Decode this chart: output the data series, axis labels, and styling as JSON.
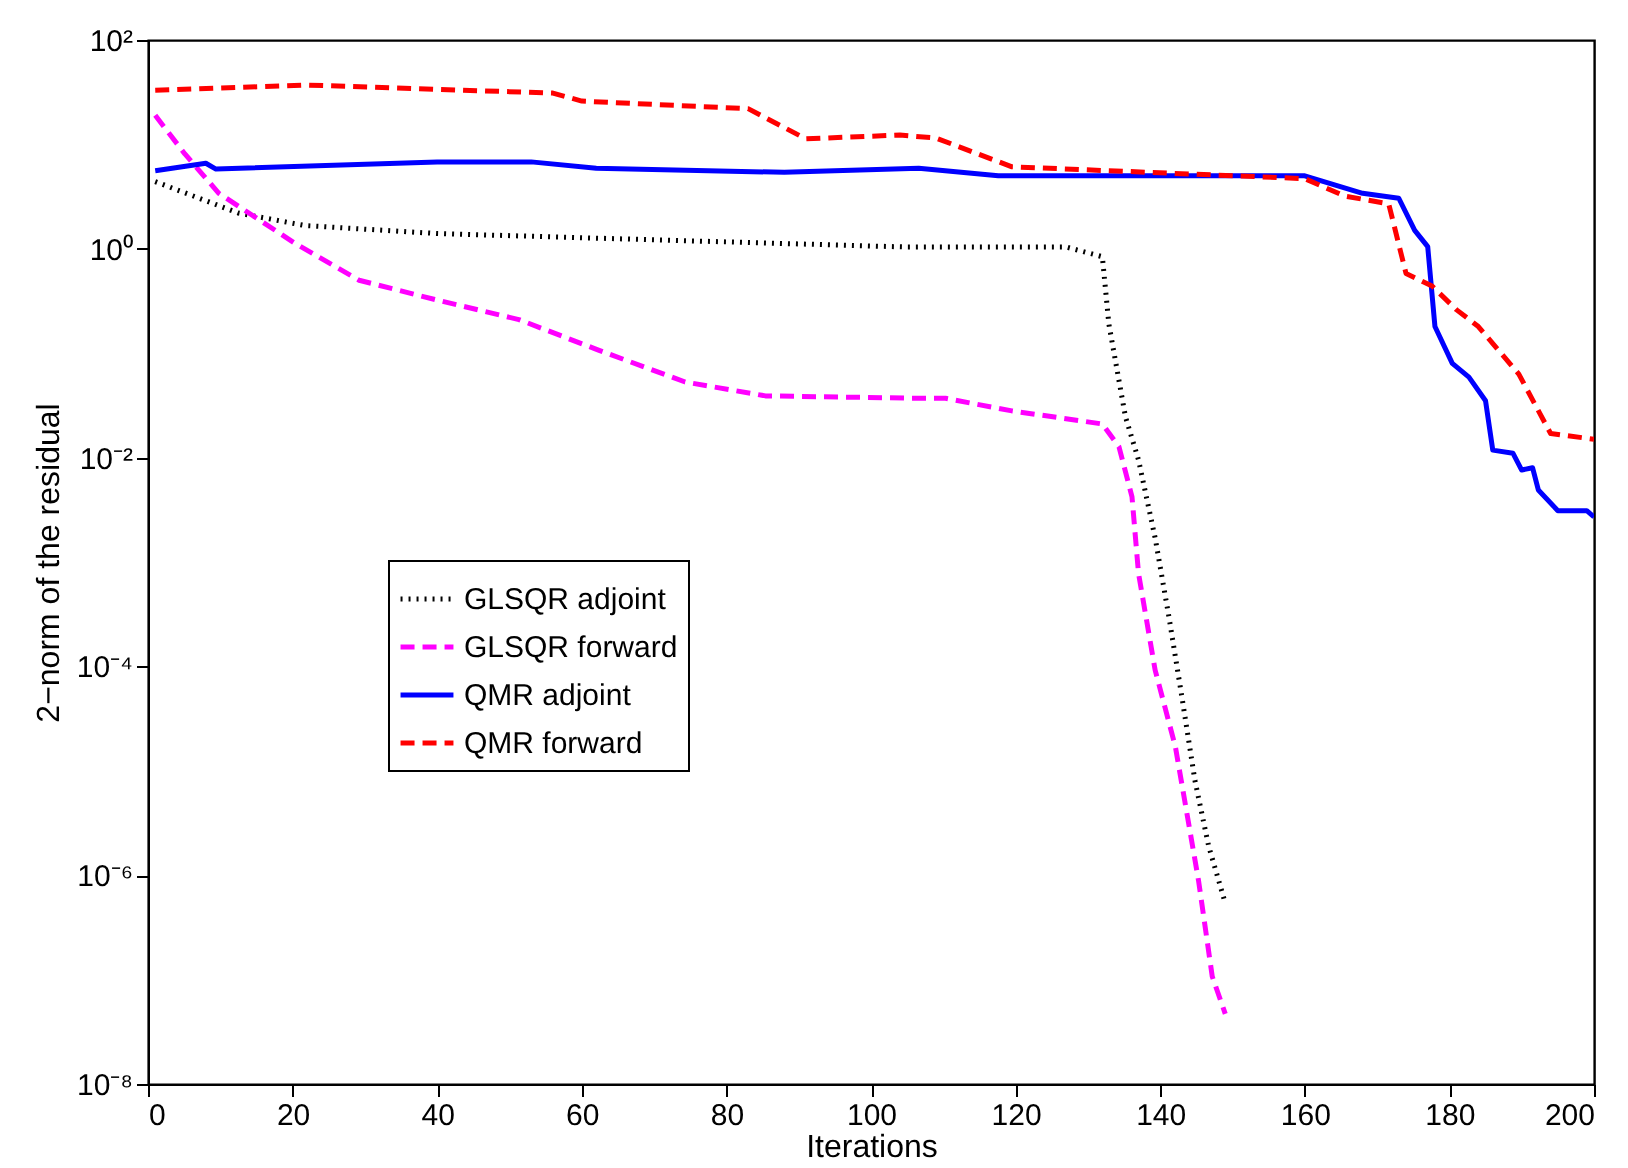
{
  "chart_data": {
    "type": "line",
    "xlabel": "Iterations",
    "ylabel": "2−norm of the residual",
    "log": "y",
    "xlim": [
      0,
      200
    ],
    "xticks": [
      0,
      20,
      40,
      60,
      80,
      100,
      120,
      140,
      160,
      180,
      200
    ],
    "ylim": [
      1e-08,
      100
    ],
    "yticks": [
      {
        "value": 1e-08,
        "label": "10⁻⁸"
      },
      {
        "value": 1e-06,
        "label": "10⁻⁶"
      },
      {
        "value": 0.0001,
        "label": "10⁻⁴"
      },
      {
        "value": 0.01,
        "label": "10⁻²"
      },
      {
        "value": 1,
        "label": "10⁰"
      },
      {
        "value": 100,
        "label": "10²"
      }
    ],
    "grid": false,
    "legend": "left",
    "series": [
      {
        "name": "GLSQR adjoint",
        "color": "#000000",
        "line_style": "dotted",
        "x": [
          1,
          12.5,
          21.7,
          40,
          79,
          105,
          127,
          132,
          132.9,
          135.2,
          137,
          139.3,
          141.2,
          143,
          144.8,
          146.7,
          149
        ],
        "values": [
          4.4,
          2.2,
          1.67,
          1.4,
          1.17,
          1.04,
          1.04,
          0.84,
          0.19,
          0.0245,
          0.0095,
          0.0017,
          0.0003,
          5.1e-05,
          8.1e-06,
          1.9e-06,
          5.4e-07
        ]
      },
      {
        "name": "GLSQR forward",
        "color": "#ff00ff",
        "line_style": "dashed",
        "x": [
          1,
          5.1,
          9.8,
          20.4,
          29.2,
          40.2,
          51.3,
          62.3,
          74.3,
          85.4,
          106.6,
          110.3,
          119.5,
          132,
          134.3,
          136.1,
          137,
          139.3,
          142.1,
          145.3,
          147.2,
          149
        ],
        "values": [
          19,
          8.1,
          3.4,
          1.12,
          0.5,
          0.32,
          0.21,
          0.107,
          0.053,
          0.039,
          0.037,
          0.037,
          0.028,
          0.021,
          0.0127,
          0.0042,
          0.00078,
          9.2e-05,
          1.7e-05,
          8.9e-07,
          1.07e-07,
          4.7e-08
        ]
      },
      {
        "name": "QMR adjoint",
        "color": "#0000ff",
        "line_style": "solid",
        "x": [
          1,
          8,
          9.4,
          40,
          53,
          62,
          88,
          106.6,
          117.6,
          160,
          168,
          173,
          175.2,
          177,
          178,
          180.4,
          182.7,
          185,
          186,
          188.8,
          190,
          191.5,
          192.3,
          195,
          199,
          200
        ],
        "values": [
          5.6,
          6.6,
          5.8,
          6.8,
          6.8,
          5.9,
          5.4,
          5.9,
          5.0,
          5.0,
          3.4,
          3.05,
          1.5,
          1.05,
          0.18,
          0.08,
          0.059,
          0.035,
          0.0118,
          0.011,
          0.0076,
          0.008,
          0.0049,
          0.0031,
          0.0031,
          0.0027
        ]
      },
      {
        "name": "QMR forward",
        "color": "#ff0000",
        "line_style": "dashed",
        "x": [
          1,
          22,
          56,
          60,
          83,
          91,
          104,
          109,
          119.5,
          160,
          165.5,
          171.6,
          174,
          177.6,
          181,
          184,
          189.6,
          194,
          200
        ],
        "values": [
          33,
          37,
          31,
          26,
          22,
          11.3,
          12.3,
          11.5,
          6.1,
          4.7,
          3.2,
          2.7,
          0.58,
          0.44,
          0.26,
          0.18,
          0.063,
          0.017,
          0.015
        ]
      }
    ]
  }
}
